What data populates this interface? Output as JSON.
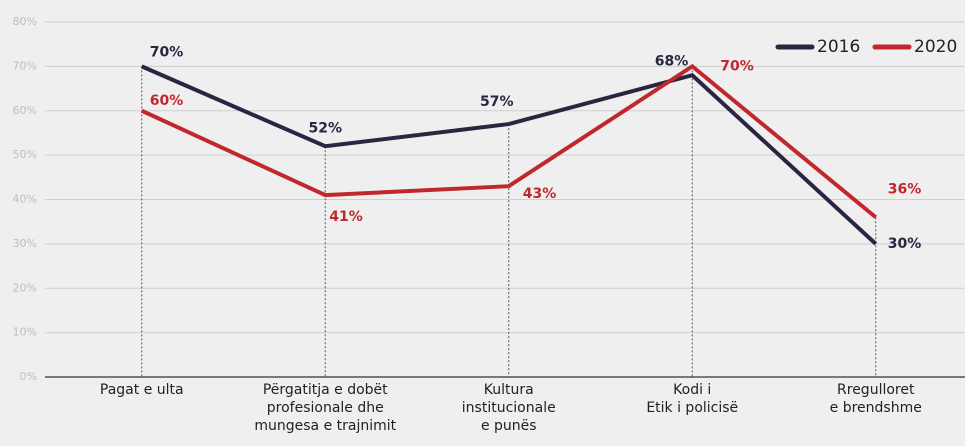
{
  "chart_data": {
    "type": "line",
    "categories": [
      [
        "Pagat e ulta"
      ],
      [
        "Përgatitja e dobët",
        "profesionale dhe",
        "mungesa e trajnimit"
      ],
      [
        "Kultura",
        "institucionale",
        "e punës"
      ],
      [
        "Kodi i",
        "Etik i policisë"
      ],
      [
        "Rregulloret",
        "e brendshme"
      ]
    ],
    "series": [
      {
        "name": "2016",
        "color": "#2b2542",
        "values": [
          70,
          52,
          57,
          68,
          30
        ],
        "value_labels": [
          "70%",
          "52%",
          "57%",
          "68%",
          "30%"
        ]
      },
      {
        "name": "2020",
        "color": "#c0282d",
        "values": [
          60,
          41,
          43,
          70,
          36
        ],
        "value_labels": [
          "60%",
          "41%",
          "43%",
          "70%",
          "36%"
        ]
      }
    ],
    "ylim": [
      0,
      80
    ],
    "yticks": [
      {
        "value": 0,
        "label": "0%"
      },
      {
        "value": 10,
        "label": "10%"
      },
      {
        "value": 20,
        "label": "20%"
      },
      {
        "value": 30,
        "label": "30%"
      },
      {
        "value": 40,
        "label": "40%"
      },
      {
        "value": 50,
        "label": "50%"
      },
      {
        "value": 60,
        "label": "60%"
      },
      {
        "value": 70,
        "label": "70%"
      },
      {
        "value": 80,
        "label": "80%"
      }
    ],
    "grid": true,
    "legend": "top-right"
  }
}
